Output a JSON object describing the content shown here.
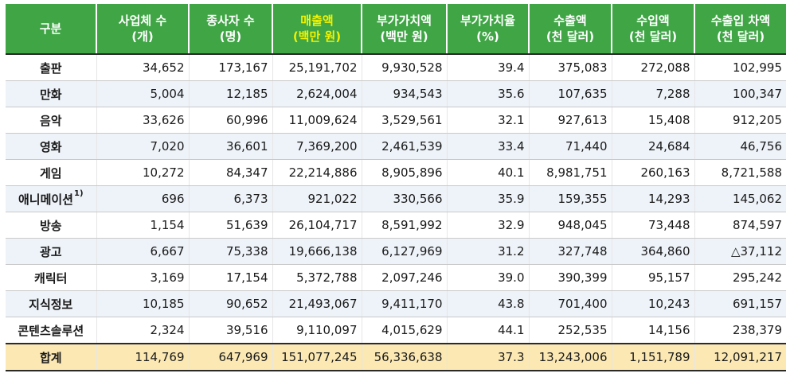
{
  "table": {
    "headers": [
      {
        "line1": "구분",
        "line2": ""
      },
      {
        "line1": "사업체 수",
        "line2": "(개)"
      },
      {
        "line1": "종사자 수",
        "line2": "(명)"
      },
      {
        "line1": "매출액",
        "line2": "(백만 원)"
      },
      {
        "line1": "부가가치액",
        "line2": "(백만 원)"
      },
      {
        "line1": "부가가치율",
        "line2": "(%)"
      },
      {
        "line1": "수출액",
        "line2": "(천 달러)"
      },
      {
        "line1": "수입액",
        "line2": "(천 달러)"
      },
      {
        "line1": "수출입 차액",
        "line2": "(천 달러)"
      }
    ],
    "highlight_color": "#f3f200",
    "header_bg": "#3fa545",
    "rows": [
      {
        "name": "출판",
        "footnote": "",
        "values": [
          "34,652",
          "173,167",
          "25,191,702",
          "9,930,528",
          "39.4",
          "375,083",
          "272,088",
          "102,995"
        ]
      },
      {
        "name": "만화",
        "footnote": "",
        "values": [
          "5,004",
          "12,185",
          "2,624,004",
          "934,543",
          "35.6",
          "107,635",
          "7,288",
          "100,347"
        ]
      },
      {
        "name": "음악",
        "footnote": "",
        "values": [
          "33,626",
          "60,996",
          "11,009,624",
          "3,529,561",
          "32.1",
          "927,613",
          "15,408",
          "912,205"
        ]
      },
      {
        "name": "영화",
        "footnote": "",
        "values": [
          "7,020",
          "36,601",
          "7,369,200",
          "2,461,539",
          "33.4",
          "71,440",
          "24,684",
          "46,756"
        ]
      },
      {
        "name": "게임",
        "footnote": "",
        "values": [
          "10,272",
          "84,347",
          "22,214,886",
          "8,905,896",
          "40.1",
          "8,981,751",
          "260,163",
          "8,721,588"
        ]
      },
      {
        "name": "애니메이션",
        "footnote": "1)",
        "values": [
          "696",
          "6,373",
          "921,022",
          "330,566",
          "35.9",
          "159,355",
          "14,293",
          "145,062"
        ]
      },
      {
        "name": "방송",
        "footnote": "",
        "values": [
          "1,154",
          "51,639",
          "26,104,717",
          "8,591,992",
          "32.9",
          "948,045",
          "73,448",
          "874,597"
        ]
      },
      {
        "name": "광고",
        "footnote": "",
        "values": [
          "6,667",
          "75,338",
          "19,666,138",
          "6,127,969",
          "31.2",
          "327,748",
          "364,860",
          "△37,112"
        ]
      },
      {
        "name": "캐릭터",
        "footnote": "",
        "values": [
          "3,169",
          "17,154",
          "5,372,788",
          "2,097,246",
          "39.0",
          "390,399",
          "95,157",
          "295,242"
        ]
      },
      {
        "name": "지식정보",
        "footnote": "",
        "values": [
          "10,185",
          "90,652",
          "21,493,067",
          "9,411,170",
          "43.8",
          "701,400",
          "10,243",
          "691,157"
        ]
      },
      {
        "name": "콘텐츠솔루션",
        "footnote": "",
        "values": [
          "2,324",
          "39,516",
          "9,110,097",
          "4,015,629",
          "44.1",
          "252,535",
          "14,156",
          "238,379"
        ]
      }
    ],
    "total": {
      "name": "합계",
      "values": [
        "114,769",
        "647,969",
        "151,077,245",
        "56,336,638",
        "37.3",
        "13,243,006",
        "1,151,789",
        "12,091,217"
      ]
    }
  }
}
